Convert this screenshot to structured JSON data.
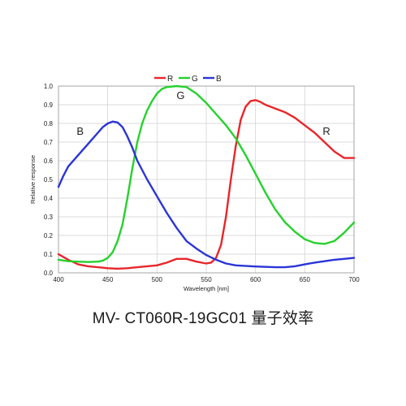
{
  "caption": "MV- CT060R-19GC01 量子效率",
  "chart_data": {
    "type": "line",
    "xlabel": "Wavelength [nm]",
    "ylabel": "Relative response",
    "xlim": [
      400,
      700
    ],
    "ylim": [
      0,
      1.0
    ],
    "x_ticks": [
      400,
      450,
      500,
      550,
      600,
      650,
      700
    ],
    "y_ticks": [
      "0.0",
      "0.1",
      "0.2",
      "0.3",
      "0.4",
      "0.5",
      "0.6",
      "0.7",
      "0.8",
      "0.9",
      "1.0"
    ],
    "grid": true,
    "legend_position": "top-center",
    "series": [
      {
        "name": "R",
        "color": "#e8262b",
        "points": [
          [
            400,
            0.1
          ],
          [
            410,
            0.07
          ],
          [
            420,
            0.045
          ],
          [
            430,
            0.035
          ],
          [
            440,
            0.03
          ],
          [
            450,
            0.025
          ],
          [
            460,
            0.022
          ],
          [
            470,
            0.025
          ],
          [
            480,
            0.03
          ],
          [
            490,
            0.035
          ],
          [
            500,
            0.04
          ],
          [
            510,
            0.055
          ],
          [
            520,
            0.075
          ],
          [
            530,
            0.075
          ],
          [
            540,
            0.06
          ],
          [
            550,
            0.05
          ],
          [
            555,
            0.055
          ],
          [
            560,
            0.08
          ],
          [
            565,
            0.15
          ],
          [
            570,
            0.3
          ],
          [
            575,
            0.5
          ],
          [
            580,
            0.68
          ],
          [
            585,
            0.82
          ],
          [
            590,
            0.89
          ],
          [
            595,
            0.92
          ],
          [
            600,
            0.925
          ],
          [
            605,
            0.915
          ],
          [
            610,
            0.9
          ],
          [
            620,
            0.88
          ],
          [
            630,
            0.86
          ],
          [
            640,
            0.83
          ],
          [
            650,
            0.79
          ],
          [
            660,
            0.75
          ],
          [
            670,
            0.7
          ],
          [
            680,
            0.65
          ],
          [
            690,
            0.615
          ],
          [
            700,
            0.615
          ]
        ]
      },
      {
        "name": "G",
        "color": "#26d12d",
        "points": [
          [
            400,
            0.07
          ],
          [
            410,
            0.062
          ],
          [
            420,
            0.06
          ],
          [
            430,
            0.058
          ],
          [
            440,
            0.06
          ],
          [
            445,
            0.065
          ],
          [
            450,
            0.08
          ],
          [
            455,
            0.11
          ],
          [
            460,
            0.17
          ],
          [
            465,
            0.26
          ],
          [
            470,
            0.4
          ],
          [
            475,
            0.56
          ],
          [
            480,
            0.7
          ],
          [
            485,
            0.8
          ],
          [
            490,
            0.87
          ],
          [
            495,
            0.92
          ],
          [
            500,
            0.96
          ],
          [
            505,
            0.985
          ],
          [
            510,
            0.995
          ],
          [
            520,
            1.0
          ],
          [
            530,
            0.995
          ],
          [
            540,
            0.96
          ],
          [
            550,
            0.91
          ],
          [
            560,
            0.85
          ],
          [
            570,
            0.79
          ],
          [
            580,
            0.72
          ],
          [
            590,
            0.63
          ],
          [
            600,
            0.53
          ],
          [
            610,
            0.43
          ],
          [
            620,
            0.34
          ],
          [
            630,
            0.27
          ],
          [
            640,
            0.22
          ],
          [
            650,
            0.18
          ],
          [
            660,
            0.16
          ],
          [
            670,
            0.155
          ],
          [
            680,
            0.17
          ],
          [
            690,
            0.215
          ],
          [
            700,
            0.27
          ]
        ]
      },
      {
        "name": "B",
        "color": "#2a35d6",
        "points": [
          [
            400,
            0.46
          ],
          [
            405,
            0.52
          ],
          [
            410,
            0.57
          ],
          [
            420,
            0.63
          ],
          [
            430,
            0.69
          ],
          [
            440,
            0.75
          ],
          [
            445,
            0.78
          ],
          [
            450,
            0.8
          ],
          [
            455,
            0.81
          ],
          [
            460,
            0.805
          ],
          [
            465,
            0.78
          ],
          [
            470,
            0.73
          ],
          [
            475,
            0.67
          ],
          [
            480,
            0.6
          ],
          [
            490,
            0.5
          ],
          [
            500,
            0.41
          ],
          [
            510,
            0.32
          ],
          [
            520,
            0.24
          ],
          [
            530,
            0.17
          ],
          [
            540,
            0.13
          ],
          [
            550,
            0.095
          ],
          [
            560,
            0.07
          ],
          [
            570,
            0.05
          ],
          [
            580,
            0.04
          ],
          [
            600,
            0.034
          ],
          [
            620,
            0.03
          ],
          [
            630,
            0.03
          ],
          [
            640,
            0.035
          ],
          [
            650,
            0.045
          ],
          [
            660,
            0.055
          ],
          [
            670,
            0.062
          ],
          [
            680,
            0.07
          ],
          [
            690,
            0.075
          ],
          [
            700,
            0.08
          ]
        ]
      }
    ],
    "annotations": [
      {
        "text": "B",
        "x": 422,
        "y": 0.74
      },
      {
        "text": "G",
        "x": 524,
        "y": 0.93
      },
      {
        "text": "R",
        "x": 672,
        "y": 0.74
      }
    ]
  }
}
